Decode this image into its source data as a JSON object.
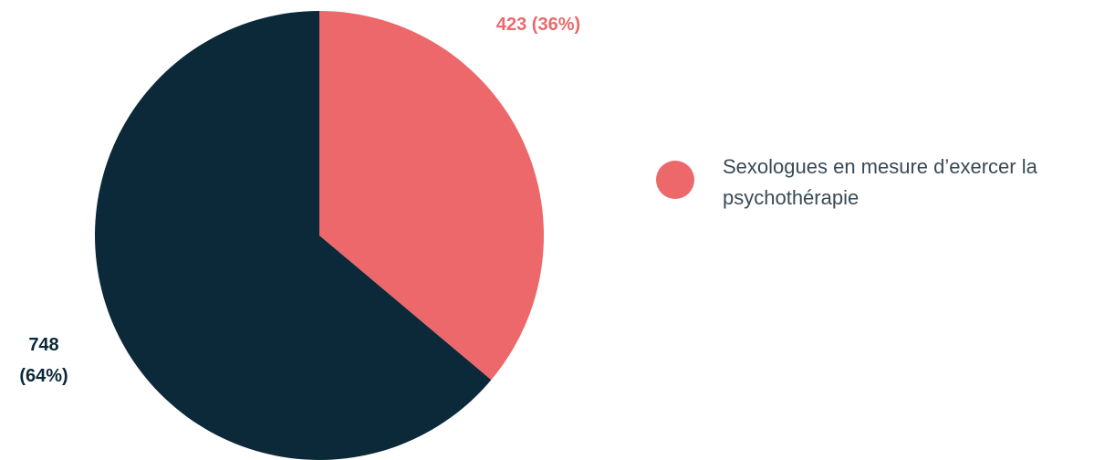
{
  "chart_data": {
    "type": "pie",
    "categories": [
      "Sexologues en mesure d’exercer la psychothérapie",
      null
    ],
    "values": [
      423,
      748
    ],
    "value_labels": [
      "423 (36%)",
      "748 (64%)"
    ],
    "colors": [
      "#ec686b",
      "#0b2939"
    ]
  }
}
